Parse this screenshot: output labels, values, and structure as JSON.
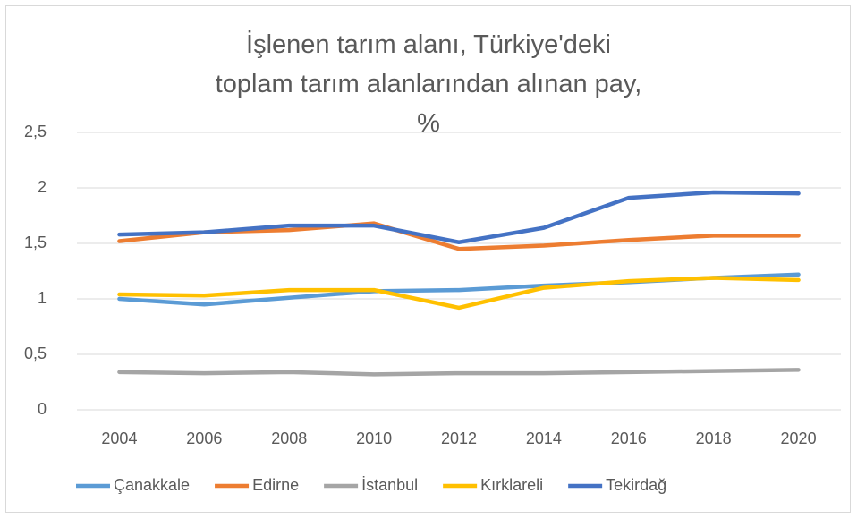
{
  "chart_data": {
    "type": "line",
    "title": "İşlenen tarım alanı, Türkiye'deki toplam tarım alanlarından alınan pay, %",
    "categories": [
      "2004",
      "2006",
      "2008",
      "2010",
      "2012",
      "2014",
      "2016",
      "2018",
      "2020"
    ],
    "series": [
      {
        "name": "Çanakkale",
        "color": "#5b9bd5",
        "values": [
          1.0,
          0.95,
          1.01,
          1.07,
          1.08,
          1.12,
          1.15,
          1.19,
          1.22
        ]
      },
      {
        "name": "Edirne",
        "color": "#ed7d31",
        "values": [
          1.52,
          1.6,
          1.62,
          1.68,
          1.45,
          1.48,
          1.53,
          1.57,
          1.57
        ]
      },
      {
        "name": "İstanbul",
        "color": "#a5a5a5",
        "values": [
          0.34,
          0.33,
          0.34,
          0.32,
          0.33,
          0.33,
          0.34,
          0.35,
          0.36
        ]
      },
      {
        "name": "Kırklareli",
        "color": "#ffc000",
        "values": [
          1.04,
          1.03,
          1.08,
          1.08,
          0.92,
          1.1,
          1.16,
          1.19,
          1.17
        ]
      },
      {
        "name": "Tekirdağ",
        "color": "#4472c4",
        "values": [
          1.58,
          1.6,
          1.66,
          1.66,
          1.51,
          1.64,
          1.91,
          1.96,
          1.95
        ]
      }
    ],
    "ylim": [
      0,
      2.5
    ],
    "yticks": [
      0,
      {
        "value": 0.5,
        "label": "0,5"
      },
      1,
      {
        "value": 1.5,
        "label": "1,5"
      },
      2,
      {
        "value": 2.5,
        "label": "2,5"
      }
    ],
    "grid": true,
    "legend": "bottom"
  }
}
